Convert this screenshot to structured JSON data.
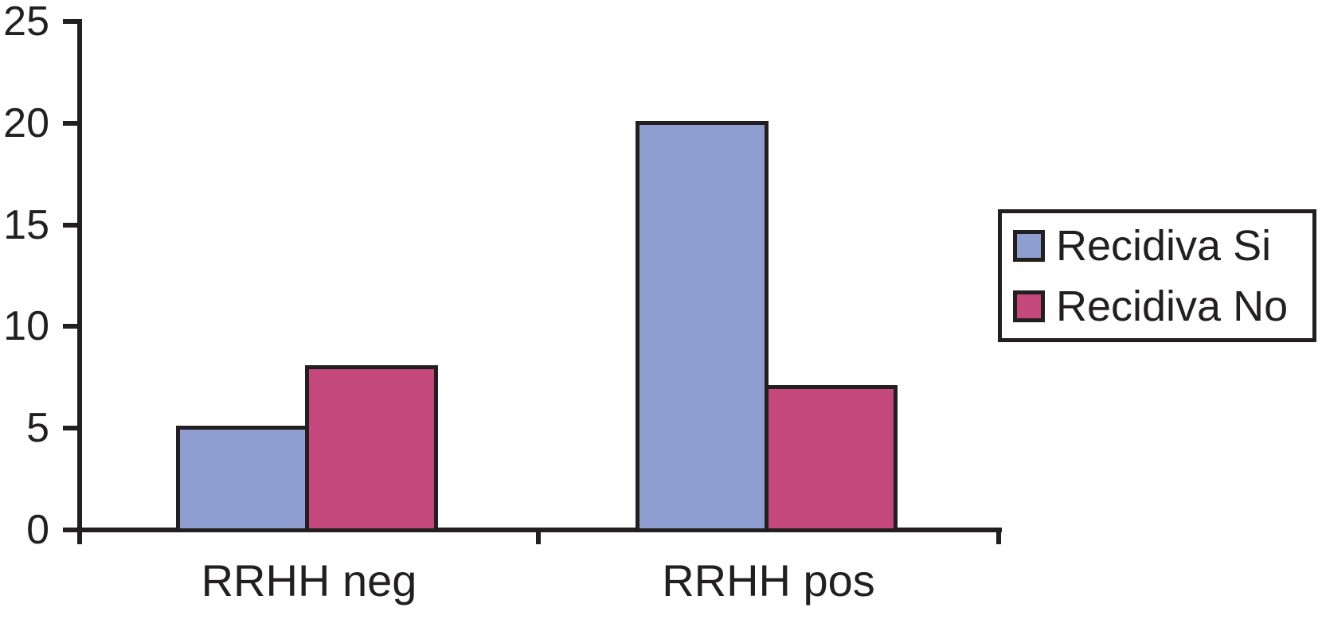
{
  "figure": {
    "background": "#FFFFFF",
    "axis_color": "#231F20",
    "text_color": "#231F20"
  },
  "chart_data": {
    "type": "bar",
    "title": "",
    "xlabel": "",
    "ylabel": "",
    "categories": [
      "RRHH neg",
      "RRHH pos"
    ],
    "series": [
      {
        "name": "Recidiva Si",
        "color": "#8F9ED1",
        "values": [
          5,
          20
        ]
      },
      {
        "name": "Recidiva No",
        "color": "#C4487C",
        "values": [
          8,
          7
        ]
      }
    ],
    "ylim": [
      0,
      25
    ],
    "yticks": [
      0,
      5,
      10,
      15,
      20,
      25
    ],
    "grid": false,
    "legend_position": "right"
  }
}
